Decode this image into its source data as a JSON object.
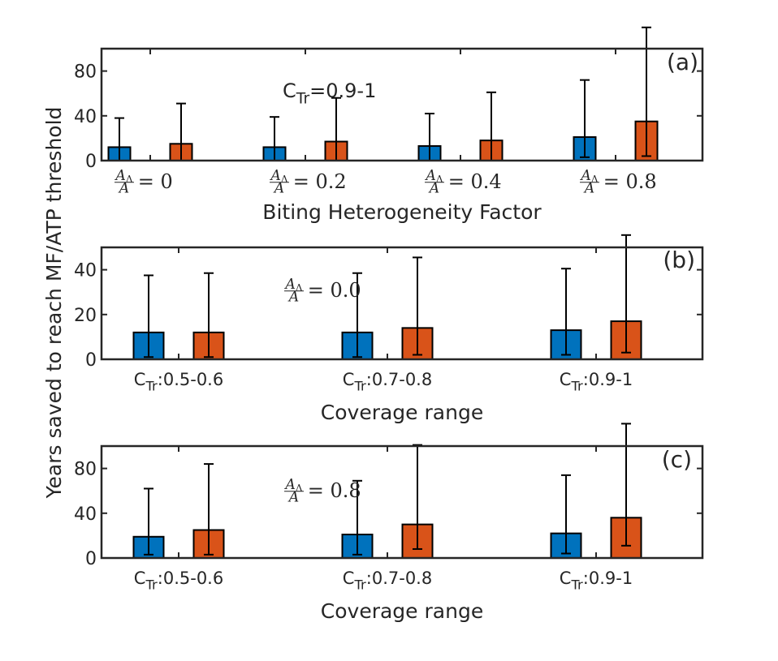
{
  "ylabel": "Years saved to reach MF/ATP threshold",
  "colors": {
    "series1": "#0072BD",
    "series2": "#D95319",
    "axis": "#262626",
    "errorbar": "#000000"
  },
  "chart_data": [
    {
      "type": "bar",
      "panel_label": "(a)",
      "annotation": {
        "base": "C",
        "sub": "Tr",
        "rest": "=0.9-1"
      },
      "xlabel": "Biting Heterogeneity Factor",
      "categories": [
        {
          "frac_num": "A",
          "frac_num_sub": "Δ",
          "frac_den": "A",
          "rhs": "= 0"
        },
        {
          "frac_num": "A",
          "frac_num_sub": "Δ",
          "frac_den": "A",
          "rhs": "= 0.2"
        },
        {
          "frac_num": "A",
          "frac_num_sub": "Δ",
          "frac_den": "A",
          "rhs": "= 0.4"
        },
        {
          "frac_num": "A",
          "frac_num_sub": "Δ",
          "frac_den": "A",
          "rhs": "= 0.8"
        }
      ],
      "series": [
        {
          "values": [
            12,
            12,
            13,
            21
          ],
          "err_low": [
            12,
            12,
            13,
            18
          ],
          "err_high": [
            26,
            27,
            29,
            51
          ]
        },
        {
          "values": [
            15,
            17,
            18,
            35
          ],
          "err_low": [
            15,
            17,
            18,
            31
          ],
          "err_high": [
            36,
            39,
            43,
            84
          ]
        }
      ],
      "ylim": [
        0,
        100
      ],
      "yticks": [
        0,
        40,
        80
      ]
    },
    {
      "type": "bar",
      "panel_label": "(b)",
      "annotation": {
        "frac_num": "A",
        "frac_num_sub": "Δ",
        "frac_den": "A",
        "rhs": "= 0.0"
      },
      "xlabel": "Coverage range",
      "categories": [
        {
          "base": "C",
          "sub": "Tr",
          "rest": ":0.5-0.6"
        },
        {
          "base": "C",
          "sub": "Tr",
          "rest": ":0.7-0.8"
        },
        {
          "base": "C",
          "sub": "Tr",
          "rest": ":0.9-1"
        }
      ],
      "series": [
        {
          "values": [
            12,
            12,
            13
          ],
          "err_low": [
            11,
            11,
            11
          ],
          "err_high": [
            25.5,
            26.5,
            27.5
          ]
        },
        {
          "values": [
            12,
            14,
            17
          ],
          "err_low": [
            11,
            12,
            14
          ],
          "err_high": [
            26.5,
            31.5,
            38.5
          ]
        }
      ],
      "ylim": [
        0,
        50
      ],
      "yticks": [
        0,
        20,
        40
      ]
    },
    {
      "type": "bar",
      "panel_label": "(c)",
      "annotation": {
        "frac_num": "A",
        "frac_num_sub": "Δ",
        "frac_den": "A",
        "rhs": "= 0.8"
      },
      "xlabel": "Coverage range",
      "categories": [
        {
          "base": "C",
          "sub": "Tr",
          "rest": ":0.5-0.6"
        },
        {
          "base": "C",
          "sub": "Tr",
          "rest": ":0.7-0.8"
        },
        {
          "base": "C",
          "sub": "Tr",
          "rest": ":0.9-1"
        }
      ],
      "series": [
        {
          "values": [
            19,
            21,
            22
          ],
          "err_low": [
            16,
            18,
            18
          ],
          "err_high": [
            43,
            48,
            52
          ]
        },
        {
          "values": [
            25,
            30,
            36
          ],
          "err_low": [
            22,
            22,
            25
          ],
          "err_high": [
            59,
            71,
            84
          ]
        }
      ],
      "ylim": [
        0,
        100
      ],
      "yticks": [
        0,
        40,
        80
      ]
    }
  ]
}
